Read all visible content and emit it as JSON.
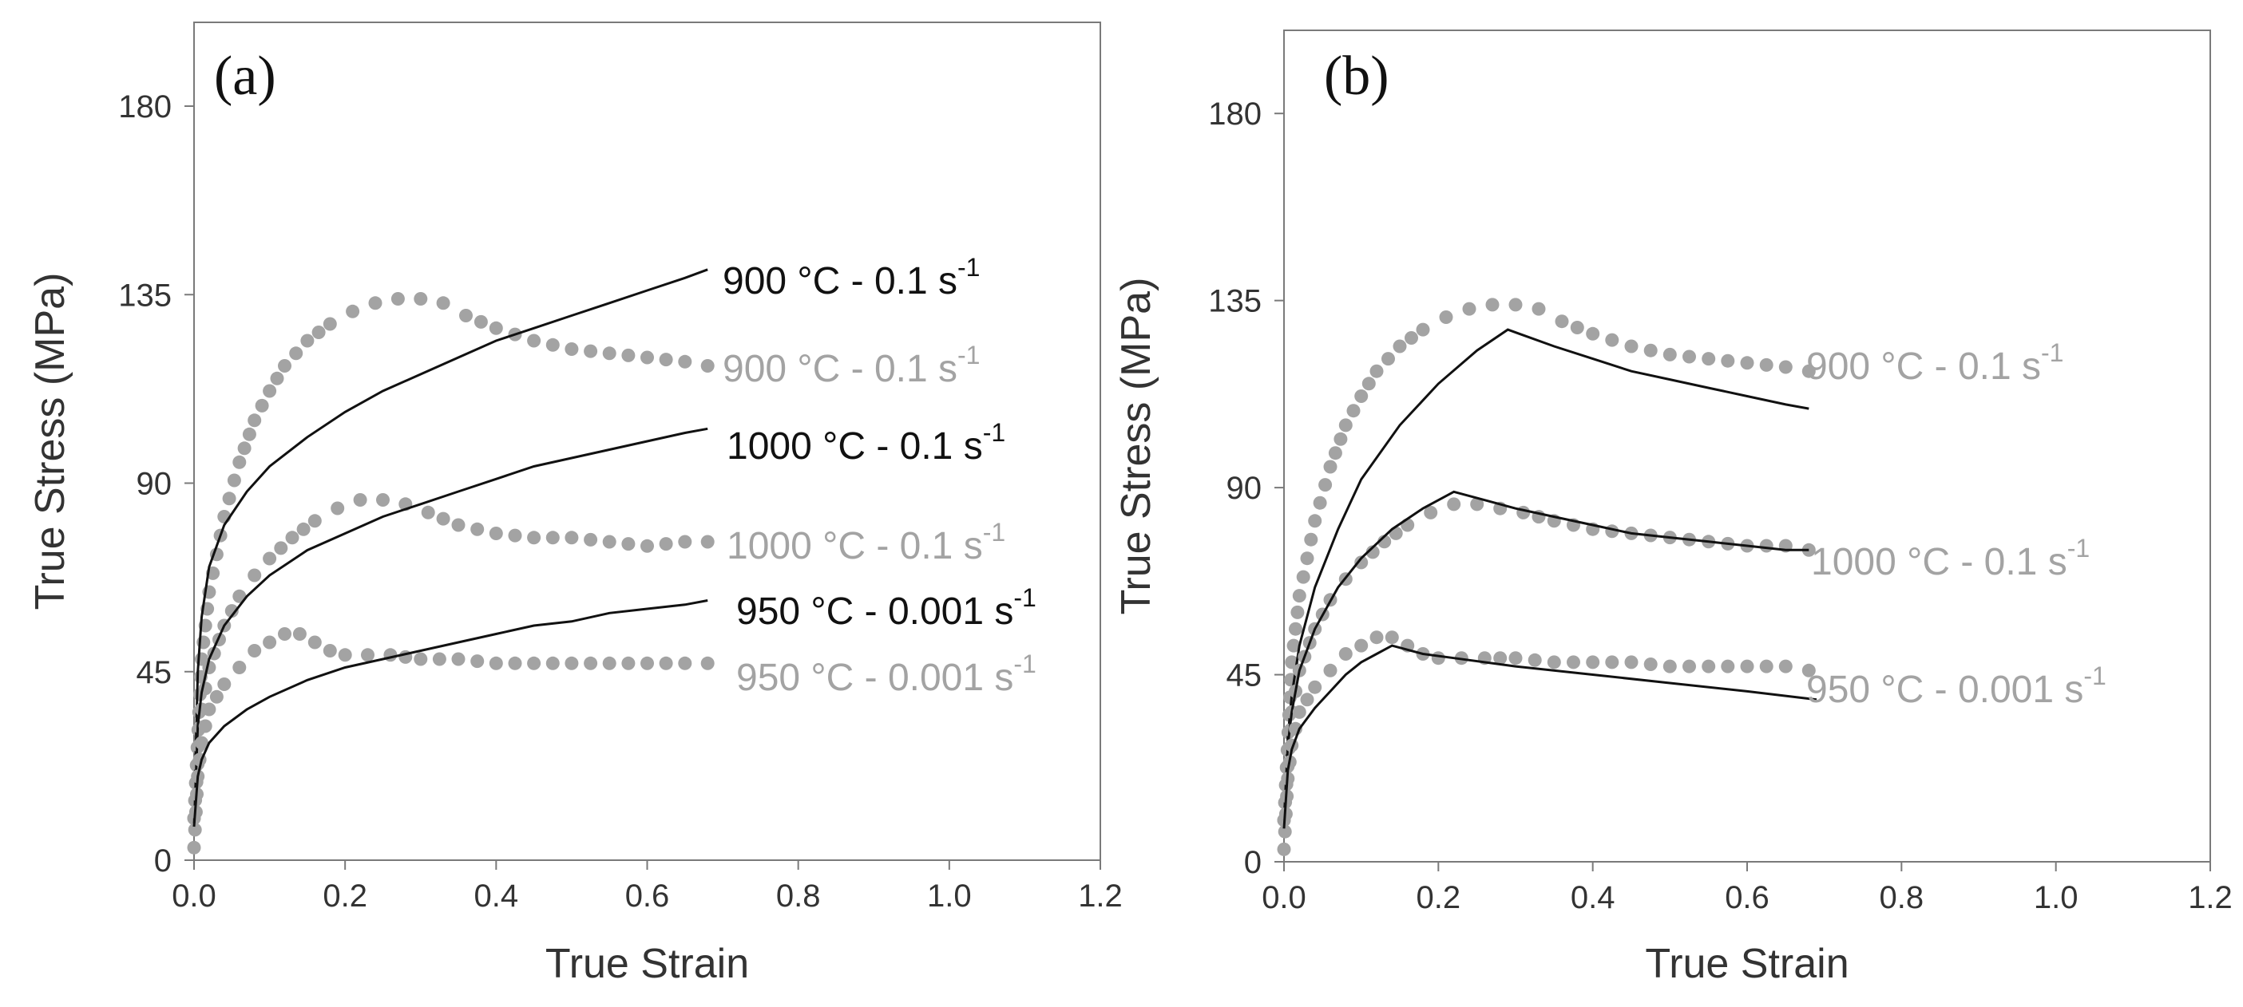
{
  "figure": {
    "background": "#ffffff"
  },
  "colors": {
    "model": "#111111",
    "experimental": "#a3a3a3",
    "axis": "#7a7a7a"
  },
  "chart_data": [
    {
      "type": "line",
      "panel_label": "(a)",
      "xlabel": "True Strain",
      "ylabel": "True Stress (MPa)",
      "xlim": [
        0,
        1.2
      ],
      "ylim": [
        0,
        200
      ],
      "xticks": [
        "0.0",
        "0.2",
        "0.4",
        "0.6",
        "0.8",
        "1.0",
        "1.2"
      ],
      "yticks": [
        "0",
        "45",
        "90",
        "135",
        "180"
      ],
      "series": [
        {
          "name": "900 °C - 0.1 s-1",
          "kind": "experimental",
          "label": {
            "text": "900 °C - 0.1 s",
            "sup": "-1"
          },
          "x": [
            0,
            0.01,
            0.02,
            0.04,
            0.06,
            0.08,
            0.1,
            0.12,
            0.15,
            0.18,
            0.21,
            0.24,
            0.27,
            0.3,
            0.33,
            0.36,
            0.4,
            0.45,
            0.5,
            0.55,
            0.6,
            0.65,
            0.68
          ],
          "y": [
            10,
            48,
            64,
            82,
            95,
            105,
            112,
            118,
            124,
            128,
            131,
            133,
            134,
            134,
            133,
            130,
            127,
            124,
            122,
            121,
            120,
            119,
            118
          ]
        },
        {
          "name": "900 °C - 0.1 s-1",
          "kind": "model",
          "label": {
            "text": "900 °C - 0.1 s",
            "sup": "-1"
          },
          "x": [
            0,
            0.005,
            0.01,
            0.02,
            0.04,
            0.07,
            0.1,
            0.15,
            0.2,
            0.25,
            0.3,
            0.35,
            0.4,
            0.45,
            0.5,
            0.55,
            0.6,
            0.65,
            0.68
          ],
          "y": [
            10,
            45,
            58,
            70,
            80,
            88,
            94,
            101,
            107,
            112,
            116,
            120,
            124,
            127,
            130,
            133,
            136,
            139,
            141
          ]
        },
        {
          "name": "1000 °C - 0.1 s-1",
          "kind": "experimental",
          "label": {
            "text": "1000 °C - 0.1 s",
            "sup": "-1"
          },
          "x": [
            0,
            0.01,
            0.02,
            0.04,
            0.06,
            0.08,
            0.1,
            0.13,
            0.16,
            0.19,
            0.22,
            0.25,
            0.28,
            0.31,
            0.35,
            0.4,
            0.45,
            0.5,
            0.55,
            0.6,
            0.65,
            0.68
          ],
          "y": [
            10,
            36,
            46,
            56,
            63,
            68,
            72,
            77,
            81,
            84,
            86,
            86,
            85,
            83,
            80,
            78,
            77,
            77,
            76,
            75,
            76,
            76
          ]
        },
        {
          "name": "1000 °C - 0.1 s-1",
          "kind": "model",
          "label": {
            "text": "1000 °C - 0.1 s",
            "sup": "-1"
          },
          "x": [
            0,
            0.005,
            0.01,
            0.02,
            0.04,
            0.07,
            0.1,
            0.15,
            0.2,
            0.25,
            0.3,
            0.35,
            0.4,
            0.45,
            0.5,
            0.55,
            0.6,
            0.65,
            0.68
          ],
          "y": [
            8,
            32,
            40,
            48,
            56,
            63,
            68,
            74,
            78,
            82,
            85,
            88,
            91,
            94,
            96,
            98,
            100,
            102,
            103
          ]
        },
        {
          "name": "950 °C - 0.001 s-1",
          "kind": "experimental",
          "label": {
            "text": "950 °C - 0.001 s",
            "sup": "-1"
          },
          "x": [
            0,
            0.005,
            0.01,
            0.02,
            0.04,
            0.06,
            0.08,
            0.1,
            0.12,
            0.14,
            0.16,
            0.18,
            0.2,
            0.23,
            0.26,
            0.3,
            0.35,
            0.4,
            0.45,
            0.5,
            0.55,
            0.6,
            0.65,
            0.68
          ],
          "y": [
            3,
            20,
            28,
            36,
            42,
            46,
            50,
            52,
            54,
            54,
            52,
            50,
            49,
            49,
            49,
            48,
            48,
            47,
            47,
            47,
            47,
            47,
            47,
            47
          ]
        },
        {
          "name": "950 °C - 0.001 s-1",
          "kind": "model",
          "label": {
            "text": "950 °C - 0.001 s",
            "sup": "-1"
          },
          "x": [
            0,
            0.005,
            0.01,
            0.02,
            0.04,
            0.07,
            0.1,
            0.15,
            0.2,
            0.25,
            0.3,
            0.35,
            0.4,
            0.45,
            0.5,
            0.55,
            0.6,
            0.65,
            0.68
          ],
          "y": [
            8,
            20,
            24,
            28,
            32,
            36,
            39,
            43,
            46,
            48,
            50,
            52,
            54,
            56,
            57,
            59,
            60,
            61,
            62
          ]
        }
      ]
    },
    {
      "type": "line",
      "panel_label": "(b)",
      "xlabel": "True Strain",
      "ylabel": "True Stress (MPa)",
      "xlim": [
        0,
        1.2
      ],
      "ylim": [
        0,
        200
      ],
      "xticks": [
        "0.0",
        "0.2",
        "0.4",
        "0.6",
        "0.8",
        "1.0",
        "1.2"
      ],
      "yticks": [
        "0",
        "45",
        "90",
        "135",
        "180"
      ],
      "series": [
        {
          "name": "900 °C - 0.1 s-1",
          "kind": "experimental",
          "label": {
            "text": "900 °C - 0.1 s",
            "sup": "-1"
          },
          "x": [
            0,
            0.01,
            0.02,
            0.04,
            0.06,
            0.08,
            0.1,
            0.12,
            0.15,
            0.18,
            0.21,
            0.24,
            0.27,
            0.3,
            0.33,
            0.36,
            0.4,
            0.45,
            0.5,
            0.55,
            0.6,
            0.65,
            0.68
          ],
          "y": [
            10,
            48,
            64,
            82,
            95,
            105,
            112,
            118,
            124,
            128,
            131,
            133,
            134,
            134,
            133,
            130,
            127,
            124,
            122,
            121,
            120,
            119,
            118
          ]
        },
        {
          "name": "900 °C - 0.1 s-1",
          "kind": "model",
          "label": {
            "text": "900 °C - 0.1 s",
            "sup": "-1"
          },
          "x": [
            0,
            0.005,
            0.01,
            0.02,
            0.04,
            0.07,
            0.1,
            0.15,
            0.2,
            0.25,
            0.29,
            0.35,
            0.4,
            0.45,
            0.5,
            0.55,
            0.6,
            0.65,
            0.68
          ],
          "y": [
            10,
            30,
            40,
            52,
            66,
            80,
            92,
            105,
            115,
            123,
            128,
            124,
            121,
            118,
            116,
            114,
            112,
            110,
            109
          ]
        },
        {
          "name": "1000 °C - 0.1 s-1",
          "kind": "experimental",
          "label": {
            "text": "1000 °C - 0.1 s",
            "sup": "-1"
          },
          "x": [
            0,
            0.01,
            0.02,
            0.04,
            0.06,
            0.08,
            0.1,
            0.13,
            0.16,
            0.19,
            0.22,
            0.25,
            0.28,
            0.31,
            0.35,
            0.4,
            0.45,
            0.5,
            0.55,
            0.6,
            0.65,
            0.68
          ],
          "y": [
            10,
            36,
            46,
            56,
            63,
            68,
            72,
            77,
            81,
            84,
            86,
            86,
            85,
            84,
            82,
            80,
            79,
            78,
            77,
            76,
            76,
            75
          ]
        },
        {
          "name": "1000 °C - 0.1 s-1",
          "kind": "model",
          "label": {
            "text": "1000 °C - 0.1 s",
            "sup": "-1"
          },
          "x": [
            0,
            0.005,
            0.01,
            0.02,
            0.04,
            0.07,
            0.1,
            0.14,
            0.18,
            0.22,
            0.26,
            0.3,
            0.35,
            0.4,
            0.45,
            0.5,
            0.55,
            0.6,
            0.65,
            0.68
          ],
          "y": [
            10,
            28,
            36,
            46,
            56,
            66,
            73,
            80,
            85,
            89,
            87,
            85,
            83,
            81,
            79,
            78,
            77,
            76,
            75,
            75
          ]
        },
        {
          "name": "950 °C - 0.001 s-1",
          "kind": "experimental",
          "label": {
            "text": "950 °C - 0.001 s",
            "sup": "-1"
          },
          "x": [
            0,
            0.005,
            0.01,
            0.02,
            0.04,
            0.06,
            0.08,
            0.1,
            0.12,
            0.14,
            0.16,
            0.18,
            0.2,
            0.23,
            0.26,
            0.3,
            0.35,
            0.4,
            0.45,
            0.5,
            0.55,
            0.6,
            0.65,
            0.68
          ],
          "y": [
            3,
            20,
            28,
            36,
            42,
            46,
            50,
            52,
            54,
            54,
            52,
            50,
            49,
            49,
            49,
            49,
            48,
            48,
            48,
            47,
            47,
            47,
            47,
            46
          ]
        },
        {
          "name": "950 °C - 0.001 s-1",
          "kind": "model",
          "label": {
            "text": "950 °C - 0.001 s",
            "sup": "-1"
          },
          "x": [
            0,
            0.005,
            0.01,
            0.02,
            0.04,
            0.06,
            0.08,
            0.1,
            0.12,
            0.14,
            0.18,
            0.22,
            0.3,
            0.4,
            0.5,
            0.6,
            0.69
          ],
          "y": [
            8,
            22,
            27,
            32,
            37,
            41,
            45,
            48,
            50,
            52,
            50,
            49,
            47,
            45,
            43,
            41,
            39
          ]
        }
      ]
    }
  ]
}
